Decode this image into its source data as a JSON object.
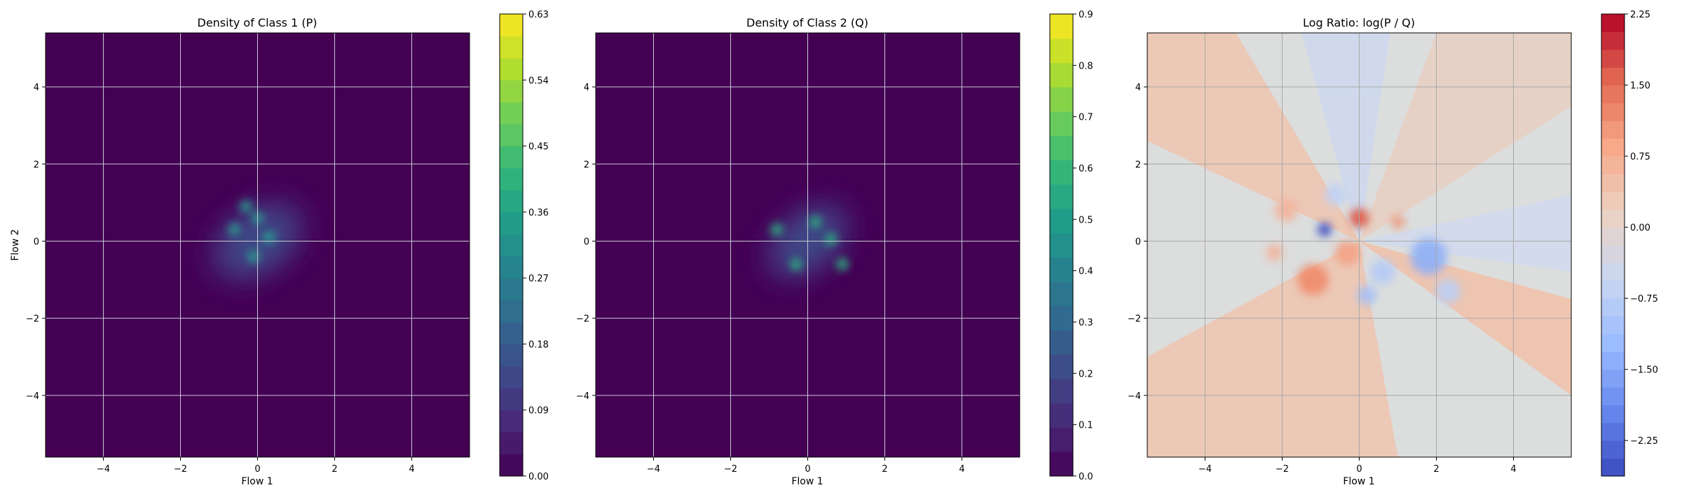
{
  "chart_data": [
    {
      "type": "heatmap",
      "title": "Density of Class 1 (P)",
      "xlabel": "Flow 1",
      "ylabel": "Flow 2",
      "xlim": [
        -5.5,
        5.5
      ],
      "ylim": [
        -5.6,
        5.4
      ],
      "xticks": [
        -4,
        -2,
        0,
        2,
        4
      ],
      "yticks": [
        -4,
        -2,
        0,
        2,
        4
      ],
      "tick_labels_x": [
        "−4",
        "−2",
        "0",
        "2",
        "4"
      ],
      "tick_labels_y": [
        "−4",
        "−2",
        "0",
        "2",
        "4"
      ],
      "grid": true,
      "colormap": "viridis",
      "colorbar": {
        "range": [
          0.0,
          0.63
        ],
        "ticks": [
          0.0,
          0.09,
          0.18,
          0.27,
          0.36,
          0.45,
          0.54,
          0.63
        ],
        "tick_labels": [
          "0.00",
          "0.09",
          "0.18",
          "0.27",
          "0.36",
          "0.45",
          "0.54",
          "0.63"
        ],
        "levels": 21
      },
      "density_blob": {
        "center": [
          0.0,
          0.0
        ],
        "spread": [
          1.4,
          0.9
        ],
        "angle_deg": -35,
        "peaks": [
          [
            -0.3,
            0.9
          ],
          [
            0.0,
            0.6
          ],
          [
            0.3,
            0.1
          ],
          [
            -0.1,
            -0.4
          ],
          [
            -0.6,
            0.3
          ]
        ]
      }
    },
    {
      "type": "heatmap",
      "title": "Density of Class 2 (Q)",
      "xlabel": "Flow 1",
      "ylabel": "",
      "xlim": [
        -5.5,
        5.5
      ],
      "ylim": [
        -5.6,
        5.4
      ],
      "xticks": [
        -4,
        -2,
        0,
        2,
        4
      ],
      "yticks": [
        -4,
        -2,
        0,
        2,
        4
      ],
      "tick_labels_x": [
        "−4",
        "−2",
        "0",
        "2",
        "4"
      ],
      "tick_labels_y": [
        "−4",
        "−2",
        "0",
        "2",
        "4"
      ],
      "grid": true,
      "colormap": "viridis",
      "colorbar": {
        "range": [
          0.0,
          0.9
        ],
        "ticks": [
          0.0,
          0.1,
          0.2,
          0.3,
          0.4,
          0.5,
          0.6,
          0.7,
          0.8,
          0.9
        ],
        "tick_labels": [
          "0.0",
          "0.1",
          "0.2",
          "0.3",
          "0.4",
          "0.5",
          "0.6",
          "0.7",
          "0.8",
          "0.9"
        ],
        "levels": 19
      },
      "density_blob": {
        "center": [
          0.0,
          0.0
        ],
        "spread": [
          1.3,
          0.8
        ],
        "angle_deg": -40,
        "peaks": [
          [
            -0.8,
            0.3
          ],
          [
            0.6,
            0.05
          ],
          [
            -0.3,
            -0.6
          ],
          [
            0.9,
            -0.6
          ],
          [
            0.2,
            0.5
          ]
        ]
      }
    },
    {
      "type": "heatmap",
      "title": "Log Ratio: log(P / Q)",
      "xlabel": "Flow 1",
      "ylabel": "",
      "xlim": [
        -5.5,
        5.5
      ],
      "ylim": [
        -5.6,
        5.4
      ],
      "xticks": [
        -4,
        -2,
        0,
        2,
        4
      ],
      "yticks": [
        -4,
        -2,
        0,
        2,
        4
      ],
      "tick_labels_x": [
        "−4",
        "−2",
        "0",
        "2",
        "4"
      ],
      "tick_labels_y": [
        "−4",
        "−2",
        "0",
        "2",
        "4"
      ],
      "grid": true,
      "colormap": "coolwarm",
      "colorbar": {
        "range": [
          -2.625,
          2.25
        ],
        "ticks": [
          -2.25,
          -1.5,
          -0.75,
          0.0,
          0.75,
          1.5,
          2.25
        ],
        "tick_labels": [
          "−2.25",
          "−1.50",
          "−0.75",
          "0.00",
          "0.75",
          "1.50",
          "2.25"
        ],
        "levels": 26
      }
    }
  ]
}
